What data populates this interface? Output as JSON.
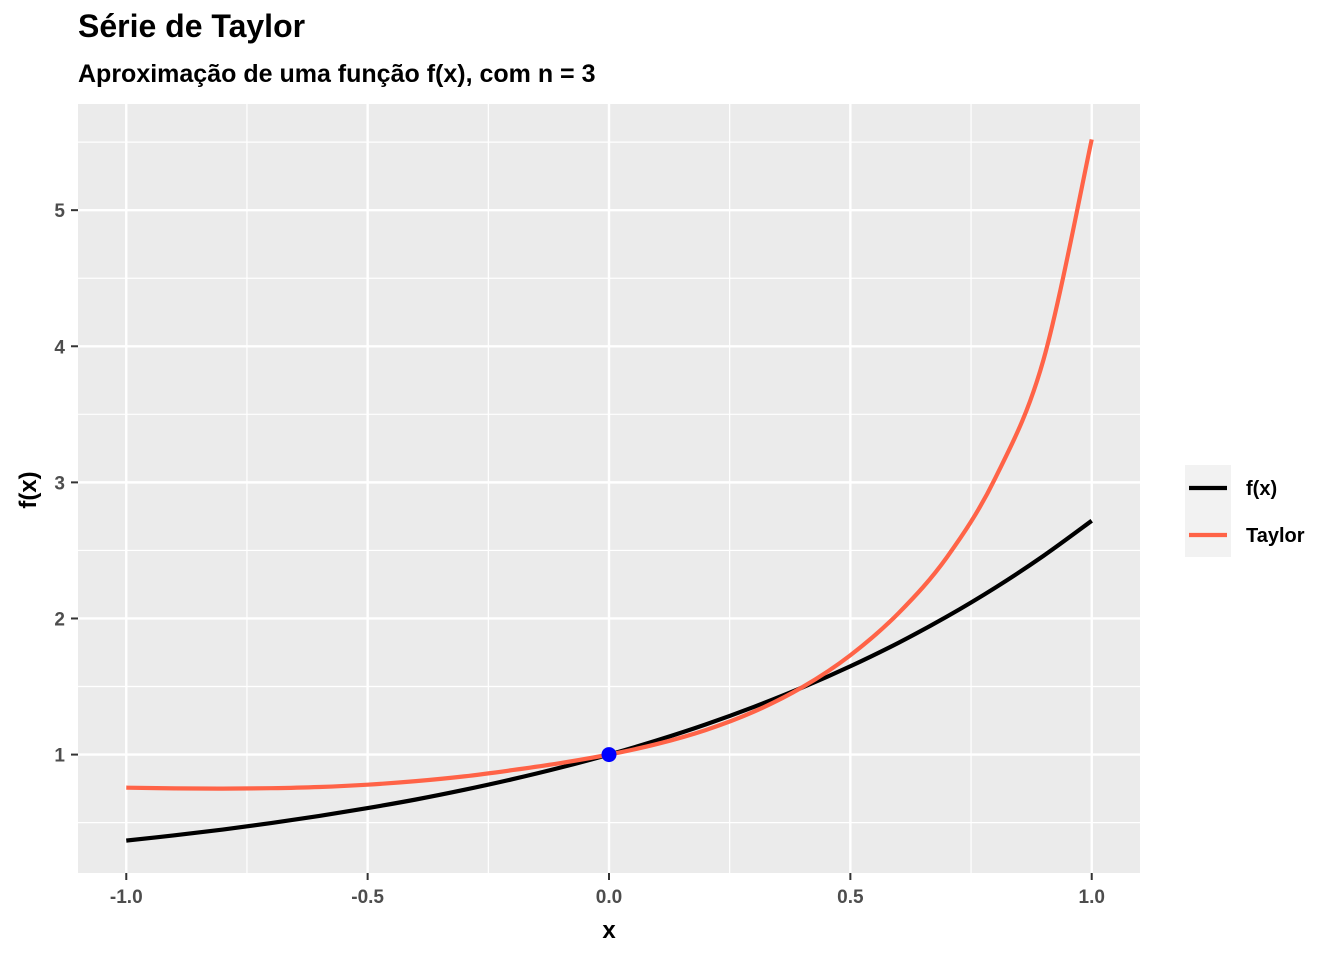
{
  "chart_data": {
    "type": "line",
    "title": "Série de Taylor",
    "subtitle": "Aproximação de uma função f(x), com n = 3",
    "xlabel": "x",
    "ylabel": "f(x)",
    "xlim": [
      -1.1,
      1.1
    ],
    "ylim": [
      0.13,
      5.78
    ],
    "x_ticks": [
      -1.0,
      -0.5,
      0.0,
      0.5,
      1.0
    ],
    "x_tick_labels": [
      "-1.0",
      "-0.5",
      "0.0",
      "0.5",
      "1.0"
    ],
    "y_ticks": [
      1,
      2,
      3,
      4,
      5
    ],
    "y_tick_labels": [
      "1",
      "2",
      "3",
      "4",
      "5"
    ],
    "grid": true,
    "legend_position": "right",
    "series": [
      {
        "name": "f(x)",
        "color": "#000000",
        "x": [
          -1.0,
          -0.9,
          -0.8,
          -0.7,
          -0.6,
          -0.5,
          -0.4,
          -0.3,
          -0.2,
          -0.1,
          0.0,
          0.1,
          0.2,
          0.3,
          0.4,
          0.5,
          0.6,
          0.7,
          0.8,
          0.9,
          1.0
        ],
        "y": [
          0.368,
          0.407,
          0.449,
          0.497,
          0.549,
          0.607,
          0.67,
          0.741,
          0.819,
          0.905,
          1.0,
          1.105,
          1.221,
          1.35,
          1.492,
          1.649,
          1.822,
          2.014,
          2.226,
          2.46,
          2.718
        ]
      },
      {
        "name": "Taylor",
        "color": "#ff6347",
        "x": [
          -1.0,
          -0.9,
          -0.8,
          -0.7,
          -0.6,
          -0.5,
          -0.4,
          -0.3,
          -0.2,
          -0.1,
          0.0,
          0.1,
          0.2,
          0.3,
          0.4,
          0.5,
          0.6,
          0.7,
          0.8,
          0.9,
          1.0
        ],
        "y": [
          0.757,
          0.752,
          0.75,
          0.753,
          0.762,
          0.779,
          0.805,
          0.84,
          0.886,
          0.938,
          1.0,
          1.078,
          1.18,
          1.315,
          1.494,
          1.73,
          2.04,
          2.45,
          3.03,
          3.9,
          5.52
        ]
      }
    ],
    "point": {
      "x": 0.0,
      "y": 1.0,
      "color": "#0000ff"
    },
    "panel_color": "#ebebeb",
    "grid_color": "#ffffff"
  }
}
